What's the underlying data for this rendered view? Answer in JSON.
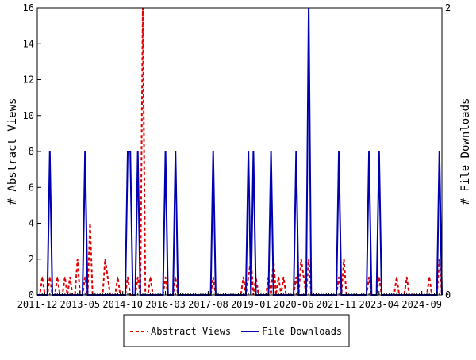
{
  "chart_data": {
    "type": "line",
    "x_start": "2011-12",
    "n_months": 162,
    "x_tick_labels": [
      "2011-12",
      "2013-05",
      "2014-10",
      "2016-03",
      "2017-08",
      "2019-01",
      "2020-06",
      "2021-11",
      "2023-04",
      "2024-09"
    ],
    "x_tick_step_months": 17,
    "ylabel": "# Abstract Views",
    "y2label": "# File Downloads",
    "ylim": [
      0,
      16
    ],
    "y_ticks": [
      "0",
      "2",
      "4",
      "6",
      "8",
      "10",
      "12",
      "14",
      "16"
    ],
    "y2lim": [
      0,
      2
    ],
    "y2_ticks": [
      "0",
      "2"
    ],
    "legend_position": "bottom",
    "series": [
      {
        "name": "Abstract Views",
        "axis": "left",
        "color": "#dd0000",
        "style": "dashed",
        "points_month_index_value": [
          [
            2,
            1
          ],
          [
            5,
            1
          ],
          [
            8,
            1
          ],
          [
            11,
            1
          ],
          [
            13,
            1
          ],
          [
            16,
            2
          ],
          [
            19,
            1
          ],
          [
            21,
            4
          ],
          [
            27,
            2
          ],
          [
            28,
            1
          ],
          [
            32,
            1
          ],
          [
            36,
            1
          ],
          [
            40,
            1
          ],
          [
            42,
            16
          ],
          [
            45,
            1
          ],
          [
            51,
            1
          ],
          [
            55,
            1
          ],
          [
            70,
            1
          ],
          [
            82,
            1
          ],
          [
            84,
            1
          ],
          [
            85,
            2
          ],
          [
            87,
            1
          ],
          [
            92,
            1
          ],
          [
            94,
            2
          ],
          [
            96,
            1
          ],
          [
            98,
            1
          ],
          [
            103,
            1
          ],
          [
            105,
            2
          ],
          [
            106,
            1
          ],
          [
            108,
            2
          ],
          [
            120,
            1
          ],
          [
            122,
            2
          ],
          [
            132,
            1
          ],
          [
            136,
            1
          ],
          [
            143,
            1
          ],
          [
            147,
            1
          ],
          [
            156,
            1
          ],
          [
            160,
            2
          ]
        ]
      },
      {
        "name": "File Downloads",
        "axis": "right",
        "color": "#0000b0",
        "style": "solid",
        "points_month_index_value": [
          [
            5,
            1
          ],
          [
            19,
            1
          ],
          [
            36,
            1
          ],
          [
            37,
            1
          ],
          [
            40,
            1
          ],
          [
            51,
            1
          ],
          [
            55,
            1
          ],
          [
            70,
            1
          ],
          [
            84,
            1
          ],
          [
            86,
            1
          ],
          [
            93,
            1
          ],
          [
            103,
            1
          ],
          [
            108,
            2
          ],
          [
            120,
            1
          ],
          [
            132,
            1
          ],
          [
            136,
            1
          ],
          [
            160,
            1
          ]
        ]
      }
    ]
  }
}
